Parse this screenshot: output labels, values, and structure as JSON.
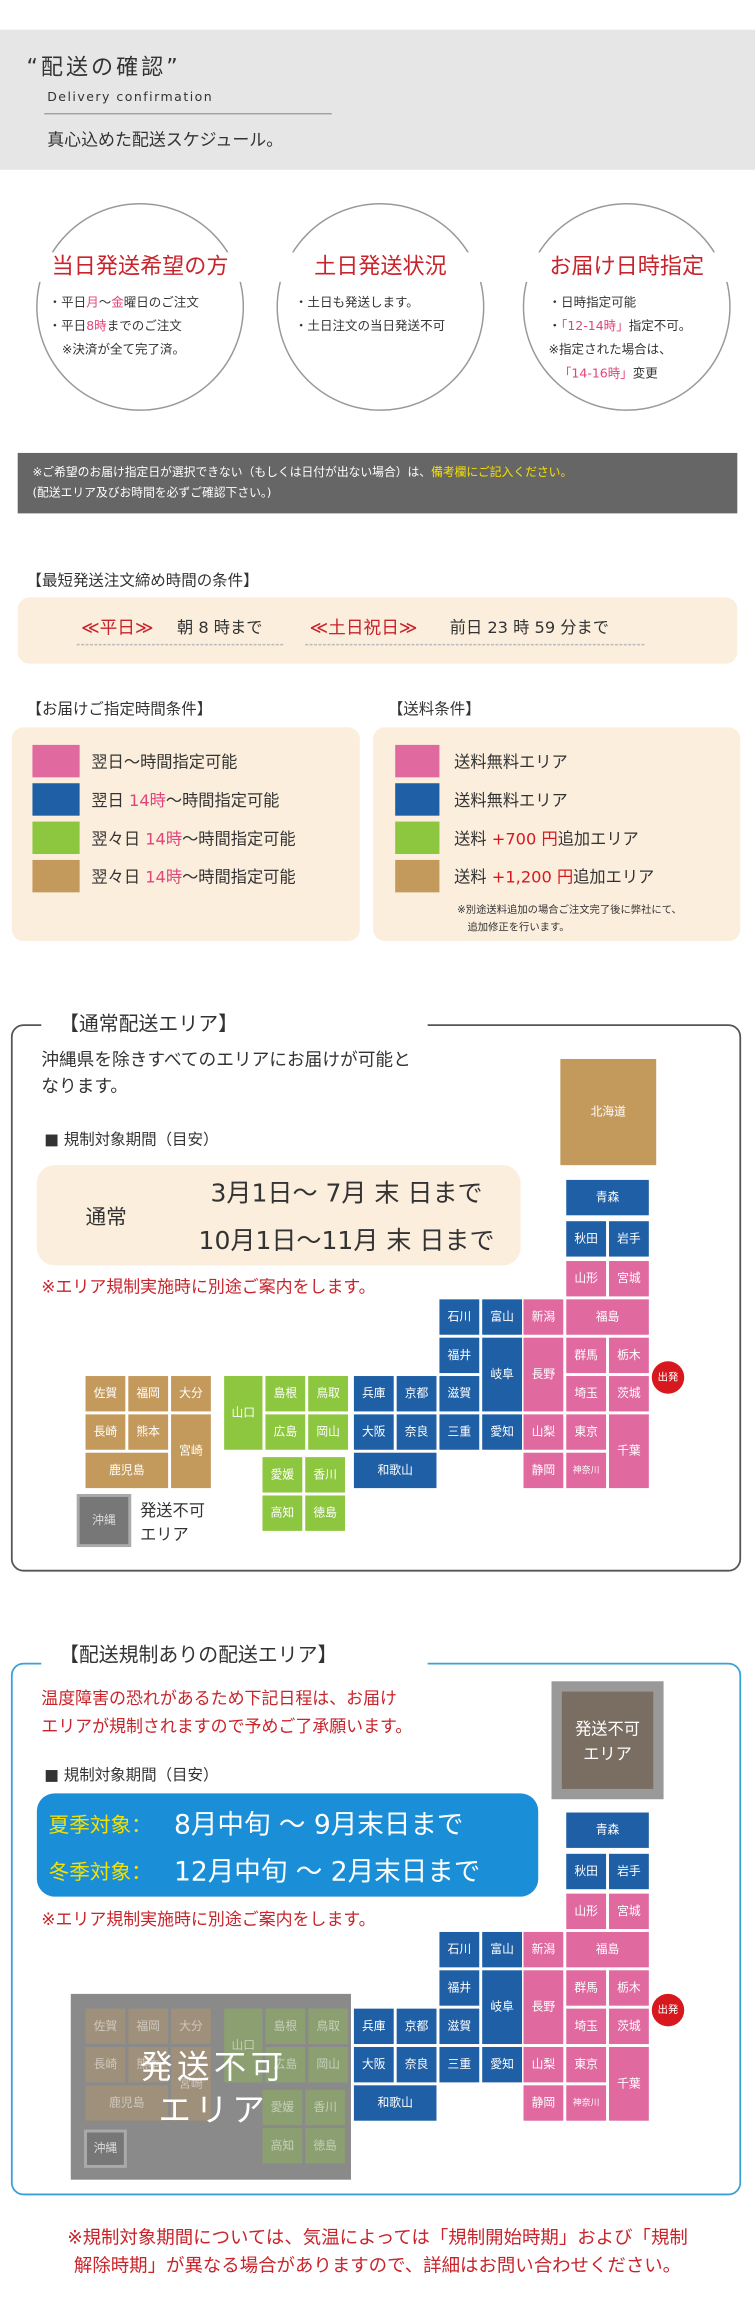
{
  "header": {
    "title": "“配送の確認”",
    "subtitle": "Delivery confirmation",
    "tagline": "真心込めた配送スケジュール。"
  },
  "circles": [
    {
      "title": "当日発送希望の方",
      "lines": [
        [
          "・平日",
          {
            "text": "月",
            "color": "#e0457b"
          },
          "～",
          {
            "text": "金",
            "color": "#e0457b"
          },
          "曜日のご注文"
        ],
        [
          "・平日",
          {
            "text": "8時",
            "color": "#e0457b"
          },
          "までのご注文"
        ],
        [
          "※決済が全て完了済。"
        ]
      ]
    },
    {
      "title": "土日発送状況",
      "lines": [
        [
          "・土日も発送します。"
        ],
        [
          "・土日注文の当日発送不可"
        ]
      ]
    },
    {
      "title": "お届け日時指定",
      "lines": [
        [
          "・日時指定可能"
        ],
        [
          "・",
          {
            "text": "「12-14時」",
            "color": "#e0457b"
          },
          "指定不可。"
        ],
        [
          "※指定された場合は、"
        ],
        [
          {
            "text": "「14-16時」",
            "color": "#e0457b"
          },
          "変更"
        ]
      ]
    }
  ],
  "notice": [
    [
      "※ご希望のお届け指定日が選択できない（もしくは日付が出ない場合）は、",
      {
        "text": "備考欄にご記入ください。",
        "color": "#f5e100"
      }
    ],
    [
      "(配送エリア及びお時間を必ずご確認下さい。)"
    ]
  ],
  "cutoff": {
    "title": "【最短発送注文締め時間の条件】",
    "items": [
      {
        "label": "≪平日≫",
        "text": "朝 8 時まで"
      },
      {
        "label": "≪土日祝日≫",
        "text": "前日 23 時 59 分まで"
      }
    ]
  },
  "time_conditions": {
    "title": "【お届けご指定時間条件】",
    "items": [
      {
        "color": "#e06aa0",
        "text": [
          "翌日～時間指定可能"
        ]
      },
      {
        "color": "#1f5fa6",
        "text": [
          "翌日 ",
          {
            "text": "14時",
            "color": "#e0457b"
          },
          "～時間指定可能"
        ]
      },
      {
        "color": "#8dc63f",
        "text": [
          "翌々日 ",
          {
            "text": "14時",
            "color": "#e0457b"
          },
          "～時間指定可能"
        ]
      },
      {
        "color": "#c49a5c",
        "text": [
          "翌々日 ",
          {
            "text": "14時",
            "color": "#e0457b"
          },
          "～時間指定可能"
        ]
      }
    ]
  },
  "shipping": {
    "title": "【送料条件】",
    "items": [
      {
        "color": "#e06aa0",
        "text": [
          "送料無料エリア"
        ]
      },
      {
        "color": "#1f5fa6",
        "text": [
          "送料無料エリア"
        ]
      },
      {
        "color": "#8dc63f",
        "text": [
          "送料 ",
          {
            "text": "+700 円",
            "color": "#d7191f"
          },
          "追加エリア"
        ]
      },
      {
        "color": "#c49a5c",
        "text": [
          "送料 ",
          {
            "text": "+1,200 円",
            "color": "#d7191f"
          },
          "追加エリア"
        ]
      }
    ],
    "note": [
      "※別途送料追加の場合ご注文完了後に弊社にて、",
      "追加修正を行います。"
    ]
  },
  "normal": {
    "title": "【通常配送エリア】",
    "intro": [
      "沖縄県を除きすべてのエリアにお届けが可能と",
      "なります。"
    ],
    "period_label": "■ 規制対象期間（目安）",
    "period": {
      "label": "通常",
      "lines": [
        "3月1日～ 7月 末 日まで",
        "10月1日～11月 末 日まで"
      ]
    },
    "note": "※エリア規制実施時に別途ご案内をします。",
    "okinawa": "沖縄",
    "unavailable": [
      "発送不可",
      "エリア"
    ]
  },
  "regulated": {
    "title": "【配送規制ありの配送エリア】",
    "intro": [
      "温度障害の恐れがあるため下記日程は、お届け",
      "エリアが規制されますので予めご了承願います。"
    ],
    "period_label": "■ 規制対象期間（目安）",
    "periods": [
      {
        "label": "夏季対象：",
        "text": "8月中旬 ～ 9月末日まで"
      },
      {
        "label": "冬季対象：",
        "text": "12月中旬 ～ 2月末日まで"
      }
    ],
    "note": "※エリア規制実施時に別途ご案内をします。",
    "unavailable_box": [
      "発送不可",
      "エリア"
    ],
    "overlay": [
      "発送不可",
      "エリア"
    ]
  },
  "map": {
    "start": "出発",
    "prefectures": [
      {
        "name": "北海道",
        "color": "#c49a5c"
      },
      {
        "name": "青森",
        "color": "#1f5fa6"
      },
      {
        "name": "秋田",
        "color": "#1f5fa6"
      },
      {
        "name": "岩手",
        "color": "#1f5fa6"
      },
      {
        "name": "山形",
        "color": "#e06aa0"
      },
      {
        "name": "宮城",
        "color": "#e06aa0"
      },
      {
        "name": "石川",
        "color": "#1f5fa6"
      },
      {
        "name": "富山",
        "color": "#1f5fa6"
      },
      {
        "name": "新潟",
        "color": "#e06aa0"
      },
      {
        "name": "福島",
        "color": "#e06aa0"
      },
      {
        "name": "福井",
        "color": "#1f5fa6"
      },
      {
        "name": "岐阜",
        "color": "#1f5fa6"
      },
      {
        "name": "長野",
        "color": "#e06aa0"
      },
      {
        "name": "群馬",
        "color": "#e06aa0"
      },
      {
        "name": "栃木",
        "color": "#e06aa0"
      },
      {
        "name": "滋賀",
        "color": "#1f5fa6"
      },
      {
        "name": "埼玉",
        "color": "#e06aa0"
      },
      {
        "name": "茨城",
        "color": "#e06aa0"
      },
      {
        "name": "兵庫",
        "color": "#1f5fa6"
      },
      {
        "name": "京都",
        "color": "#1f5fa6"
      },
      {
        "name": "大阪",
        "color": "#1f5fa6"
      },
      {
        "name": "奈良",
        "color": "#1f5fa6"
      },
      {
        "name": "三重",
        "color": "#1f5fa6"
      },
      {
        "name": "愛知",
        "color": "#1f5fa6"
      },
      {
        "name": "山梨",
        "color": "#e06aa0"
      },
      {
        "name": "東京",
        "color": "#e06aa0"
      },
      {
        "name": "千葉",
        "color": "#e06aa0"
      },
      {
        "name": "和歌山",
        "color": "#1f5fa6"
      },
      {
        "name": "静岡",
        "color": "#e06aa0"
      },
      {
        "name": "神奈川",
        "color": "#e06aa0"
      },
      {
        "name": "山口",
        "color": "#8dc63f"
      },
      {
        "name": "島根",
        "color": "#8dc63f"
      },
      {
        "name": "鳥取",
        "color": "#8dc63f"
      },
      {
        "name": "広島",
        "color": "#8dc63f"
      },
      {
        "name": "岡山",
        "color": "#8dc63f"
      },
      {
        "name": "愛媛",
        "color": "#8dc63f"
      },
      {
        "name": "香川",
        "color": "#8dc63f"
      },
      {
        "name": "高知",
        "color": "#8dc63f"
      },
      {
        "name": "徳島",
        "color": "#8dc63f"
      },
      {
        "name": "佐賀",
        "color": "#c49a5c"
      },
      {
        "name": "福岡",
        "color": "#c49a5c"
      },
      {
        "name": "大分",
        "color": "#c49a5c"
      },
      {
        "name": "長崎",
        "color": "#c49a5c"
      },
      {
        "name": "熊本",
        "color": "#c49a5c"
      },
      {
        "name": "宮崎",
        "color": "#c49a5c"
      },
      {
        "name": "鹿児島",
        "color": "#c49a5c"
      }
    ]
  },
  "footer": [
    "※規制対象期間については、気温によっては「規制開始時期」および「規制",
    "解除時期」が異なる場合がありますので、詳細はお問い合わせください。"
  ]
}
